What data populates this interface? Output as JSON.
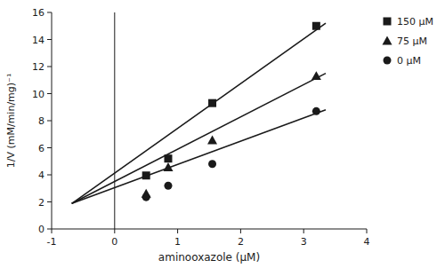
{
  "chart_data": {
    "type": "line",
    "xlabel": "aminooxazole (μM)",
    "ylabel": "1/V (mM/min/mg)⁻¹",
    "color": "#1a1a1a",
    "xlim": [
      -1,
      4
    ],
    "ylim": [
      0,
      16
    ],
    "xticks": [
      -1,
      0,
      1,
      2,
      3,
      4
    ],
    "yticks": [
      0,
      2,
      4,
      6,
      8,
      10,
      12,
      14,
      16
    ],
    "vline": 0,
    "legend": "right",
    "series": [
      {
        "type": "line",
        "x": [
          -0.68,
          3.35
        ],
        "values": [
          1.88,
          15.2
        ]
      },
      {
        "name": "150 μM",
        "type": "scatter",
        "marker": "square",
        "x": [
          0.5,
          0.85,
          1.55,
          3.2
        ],
        "values": [
          3.95,
          5.2,
          9.3,
          15.0
        ]
      },
      {
        "type": "line",
        "x": [
          -0.68,
          3.35
        ],
        "values": [
          1.88,
          11.5
        ]
      },
      {
        "name": "75 μM",
        "type": "scatter",
        "marker": "triangle",
        "x": [
          0.5,
          0.85,
          1.55,
          3.2
        ],
        "values": [
          2.6,
          4.55,
          6.55,
          11.3
        ]
      },
      {
        "type": "line",
        "x": [
          -0.68,
          3.35
        ],
        "values": [
          1.88,
          8.8
        ]
      },
      {
        "name": "0 μM",
        "type": "scatter",
        "marker": "circle",
        "x": [
          0.5,
          0.85,
          1.55,
          3.2
        ],
        "values": [
          2.35,
          3.2,
          4.8,
          8.7
        ]
      }
    ]
  }
}
